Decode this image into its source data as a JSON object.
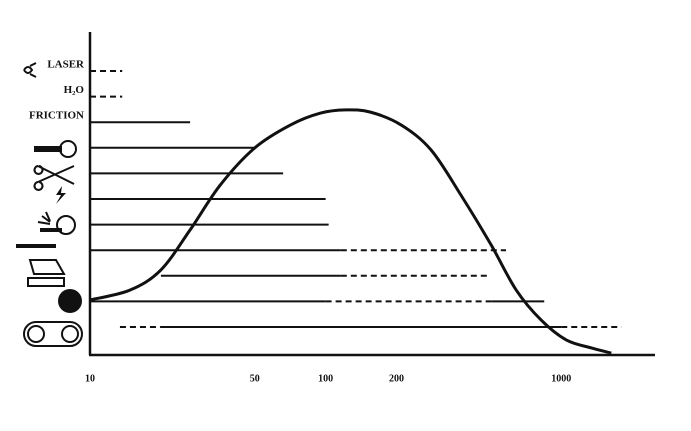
{
  "chart_data": {
    "type": "range",
    "xscale": "log",
    "xlim": [
      10,
      2500
    ],
    "xticks": [
      10,
      50,
      100,
      200,
      1000
    ],
    "ylim": [
      0,
      100
    ],
    "color": "#111111",
    "rows": [
      {
        "label": "LASER",
        "segments": [
          {
            "from": 10,
            "to": 13.7,
            "style": "dashed"
          }
        ]
      },
      {
        "label": "H₂O",
        "segments": [
          {
            "from": 10,
            "to": 13.7,
            "style": "dashed"
          }
        ]
      },
      {
        "label": "FRICTION",
        "segments": [
          {
            "from": 10,
            "to": 26.6,
            "style": "solid"
          }
        ]
      },
      {
        "label": null,
        "segments": [
          {
            "from": 10,
            "to": 50,
            "style": "solid"
          }
        ]
      },
      {
        "label": null,
        "segments": [
          {
            "from": 10,
            "to": 66,
            "style": "solid"
          }
        ]
      },
      {
        "label": null,
        "segments": [
          {
            "from": 10,
            "to": 100,
            "style": "solid"
          }
        ]
      },
      {
        "label": null,
        "segments": [
          {
            "from": 10,
            "to": 103,
            "style": "solid"
          }
        ]
      },
      {
        "label": null,
        "segments": [
          {
            "from": 10,
            "to": 116,
            "style": "solid"
          },
          {
            "from": 116,
            "to": 583,
            "style": "dashed"
          }
        ]
      },
      {
        "label": null,
        "segments": [
          {
            "from": 20,
            "to": 116,
            "style": "solid"
          },
          {
            "from": 116,
            "to": 494,
            "style": "dashed"
          }
        ]
      },
      {
        "label": null,
        "segments": [
          {
            "from": 10,
            "to": 100,
            "style": "solid"
          },
          {
            "from": 100,
            "to": 504,
            "style": "dashed"
          },
          {
            "from": 504,
            "to": 847,
            "style": "solid"
          }
        ]
      },
      {
        "label": null,
        "segments": [
          {
            "from": 13.4,
            "to": 20,
            "style": "dashed"
          },
          {
            "from": 20,
            "to": 1000,
            "style": "solid"
          },
          {
            "from": 1000,
            "to": 1800,
            "style": "dashed"
          }
        ]
      }
    ],
    "curve": {
      "x": [
        10,
        14.8,
        20,
        26.6,
        35.7,
        50,
        71,
        95.2,
        122,
        155,
        209,
        280,
        375,
        504,
        644,
        822,
        1050,
        1343,
        1632
      ],
      "y": [
        17.2,
        20.3,
        26.6,
        39.1,
        53.1,
        64.7,
        71.9,
        75.6,
        76.6,
        75.9,
        71.9,
        64.1,
        50,
        34.4,
        20.3,
        10.9,
        4.7,
        2.2,
        0.6
      ]
    }
  }
}
